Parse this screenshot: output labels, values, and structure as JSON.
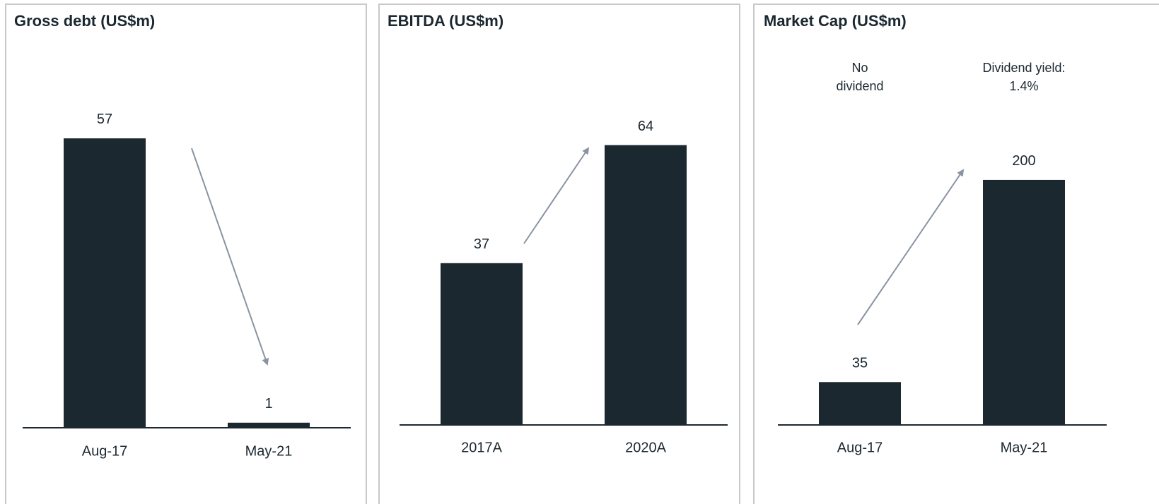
{
  "chart_data": [
    {
      "type": "bar",
      "title": "Gross debt (US$m)",
      "categories": [
        "Aug-17",
        "May-21"
      ],
      "values": [
        57,
        1
      ],
      "color": "#1b2830",
      "ylim": [
        0,
        62
      ]
    },
    {
      "type": "bar",
      "title": "EBITDA (US$m)",
      "categories": [
        "2017A",
        "2020A"
      ],
      "values": [
        37,
        64
      ],
      "color": "#1b2830",
      "ylim": [
        0,
        72
      ]
    },
    {
      "type": "bar",
      "title": "Market Cap (US$m)",
      "categories": [
        "Aug-17",
        "May-21"
      ],
      "values": [
        35,
        200
      ],
      "color": "#1b2830",
      "ylim": [
        0,
        257
      ],
      "annotations": [
        [
          "No",
          "dividend"
        ],
        [
          "Dividend yield:",
          "1.4%"
        ]
      ]
    }
  ]
}
